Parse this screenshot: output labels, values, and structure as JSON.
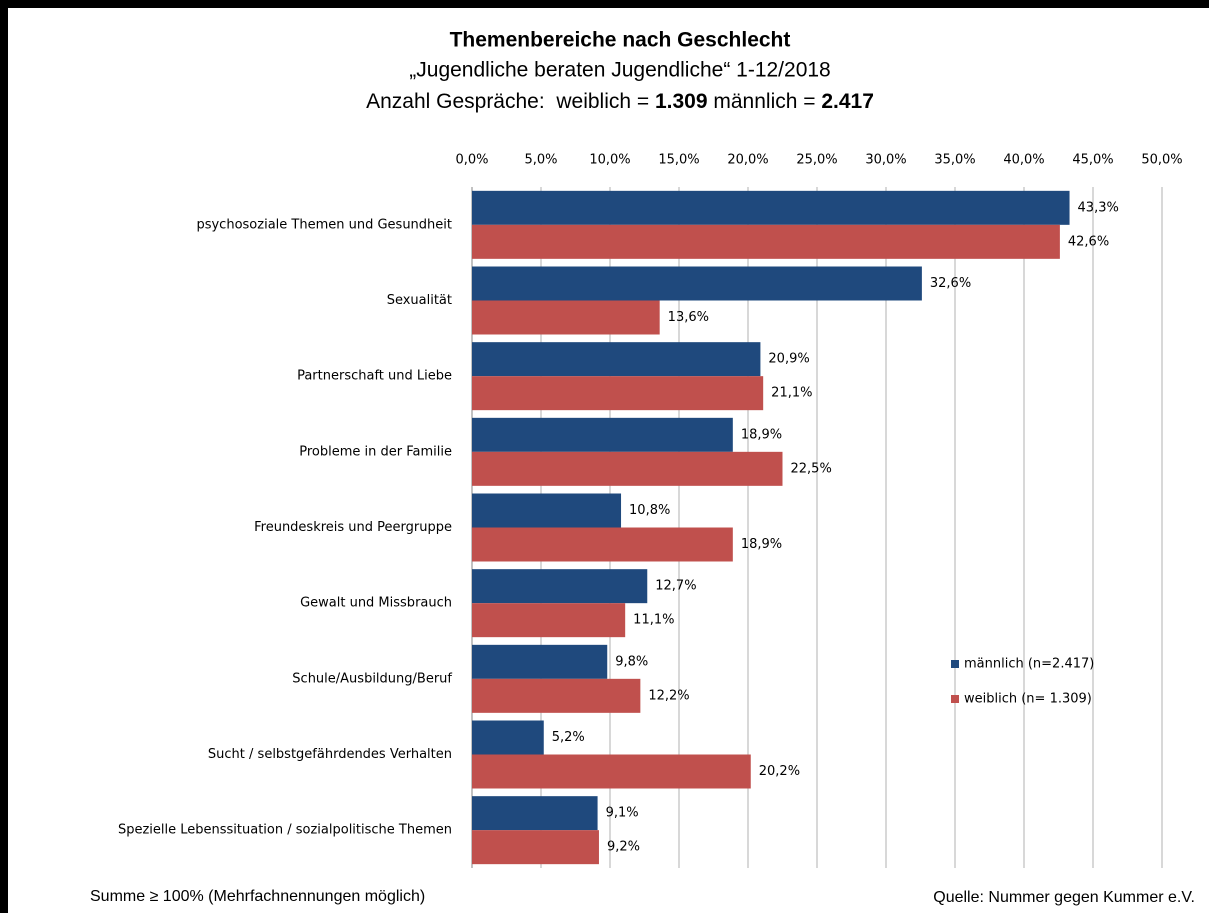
{
  "chart_data": {
    "type": "bar",
    "orientation": "horizontal",
    "title": "Themenbereiche nach Geschlecht",
    "subtitle": "„Jugendliche beraten Jugendliche“ 1-12/2018",
    "subtitle_parts": [
      "Anzahl Gespräche:  weiblich = ",
      "1.309",
      " männlich = ",
      "2.417"
    ],
    "categories": [
      "psychosoziale Themen und Gesundheit",
      "Sexualität",
      "Partnerschaft und Liebe",
      "Probleme in der Familie",
      "Freundeskreis und Peergruppe",
      "Gewalt und Missbrauch",
      "Schule/Ausbildung/Beruf",
      "Sucht / selbstgefährdendes Verhalten",
      "Spezielle Lebenssituation / sozialpolitische Themen"
    ],
    "series": [
      {
        "name": "männlich (n=2.417)",
        "color": "#1f497d",
        "values": [
          43.3,
          32.6,
          20.9,
          18.9,
          10.8,
          12.7,
          9.8,
          5.2,
          9.1
        ],
        "value_labels": [
          "43,3%",
          "32,6%",
          "20,9%",
          "18,9%",
          "10,8%",
          "12,7%",
          "9,8%",
          "5,2%",
          "9,1%"
        ]
      },
      {
        "name": "weiblich (n= 1.309)",
        "color": "#c0504d",
        "values": [
          42.6,
          13.6,
          21.1,
          22.5,
          18.9,
          11.1,
          12.2,
          20.2,
          9.2
        ],
        "value_labels": [
          "42,6%",
          "13,6%",
          "21,1%",
          "22,5%",
          "18,9%",
          "11,1%",
          "12,2%",
          "20,2%",
          "9,2%"
        ]
      }
    ],
    "xlim": [
      0,
      50
    ],
    "xticks": [
      {
        "value": 0,
        "label": "0,0%"
      },
      {
        "value": 5,
        "label": "5,0%"
      },
      {
        "value": 10,
        "label": "10,0%"
      },
      {
        "value": 15,
        "label": "15,0%"
      },
      {
        "value": 20,
        "label": "20,0%"
      },
      {
        "value": 25,
        "label": "25,0%"
      },
      {
        "value": 30,
        "label": "30,0%"
      },
      {
        "value": 35,
        "label": "35,0%"
      },
      {
        "value": 40,
        "label": "40,0%"
      },
      {
        "value": 45,
        "label": "45,0%"
      },
      {
        "value": 50,
        "label": "50,0%"
      }
    ],
    "grid": true,
    "legend": "lower right",
    "footnote": "Summe ≥ 100% (Mehrfachnennungen möglich)",
    "source": "Quelle: Nummer gegen Kummer e.V."
  }
}
